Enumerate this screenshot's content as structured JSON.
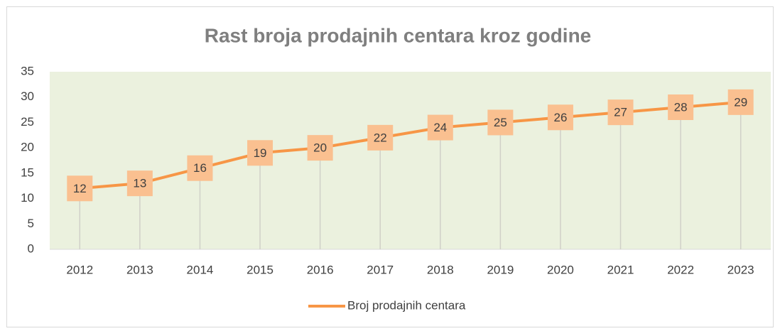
{
  "chart_data": {
    "type": "line",
    "title": "Rast broja prodajnih centara kroz godine",
    "categories": [
      "2012",
      "2013",
      "2014",
      "2015",
      "2016",
      "2017",
      "2018",
      "2019",
      "2020",
      "2021",
      "2022",
      "2023"
    ],
    "series": [
      {
        "name": "Broj prodajnih centara",
        "color": "#f79646",
        "values": [
          12,
          13,
          16,
          19,
          20,
          22,
          24,
          25,
          26,
          27,
          28,
          29
        ]
      }
    ],
    "ylim": [
      0,
      35
    ],
    "yticks": [
      0,
      5,
      10,
      15,
      20,
      25,
      30,
      35
    ],
    "drop_lines": true,
    "data_labels": true,
    "legend": "bottom",
    "plot_background": "#ebf1de"
  }
}
